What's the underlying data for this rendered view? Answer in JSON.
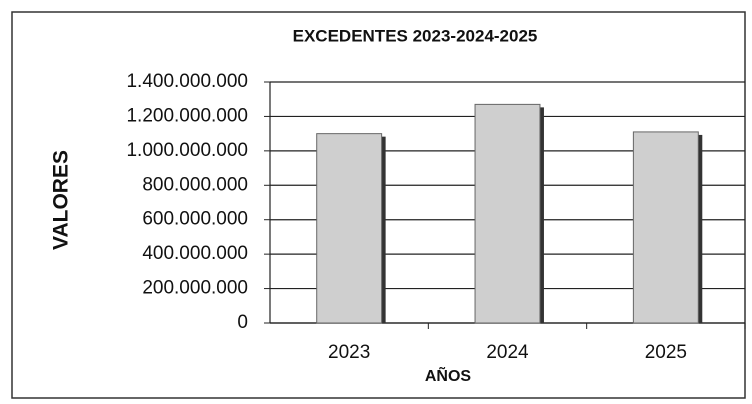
{
  "chart_data": {
    "type": "bar",
    "title": "EXCEDENTES  2023-2024-2025",
    "y_label": "VALORES",
    "x_label": "AÑOS",
    "categories": [
      "2023",
      "2024",
      "2025"
    ],
    "values": [
      1100000000,
      1270000000,
      1110000000
    ],
    "color": "#cfcfcf",
    "ylim": [
      0,
      1400000000
    ],
    "yticks": [
      0,
      {
        "value": 200000000,
        "label": "200.000.000"
      },
      {
        "value": 400000000,
        "label": "400.000.000"
      },
      {
        "value": 600000000,
        "label": "600.000.000"
      },
      {
        "value": 800000000,
        "label": "800.000.000"
      },
      {
        "value": 1000000000,
        "label": "1.000.000.000"
      },
      {
        "value": 1200000000,
        "label": "1.200.000.000"
      },
      {
        "value": 1400000000,
        "label": "1.400.000.000"
      }
    ],
    "grid": true
  }
}
